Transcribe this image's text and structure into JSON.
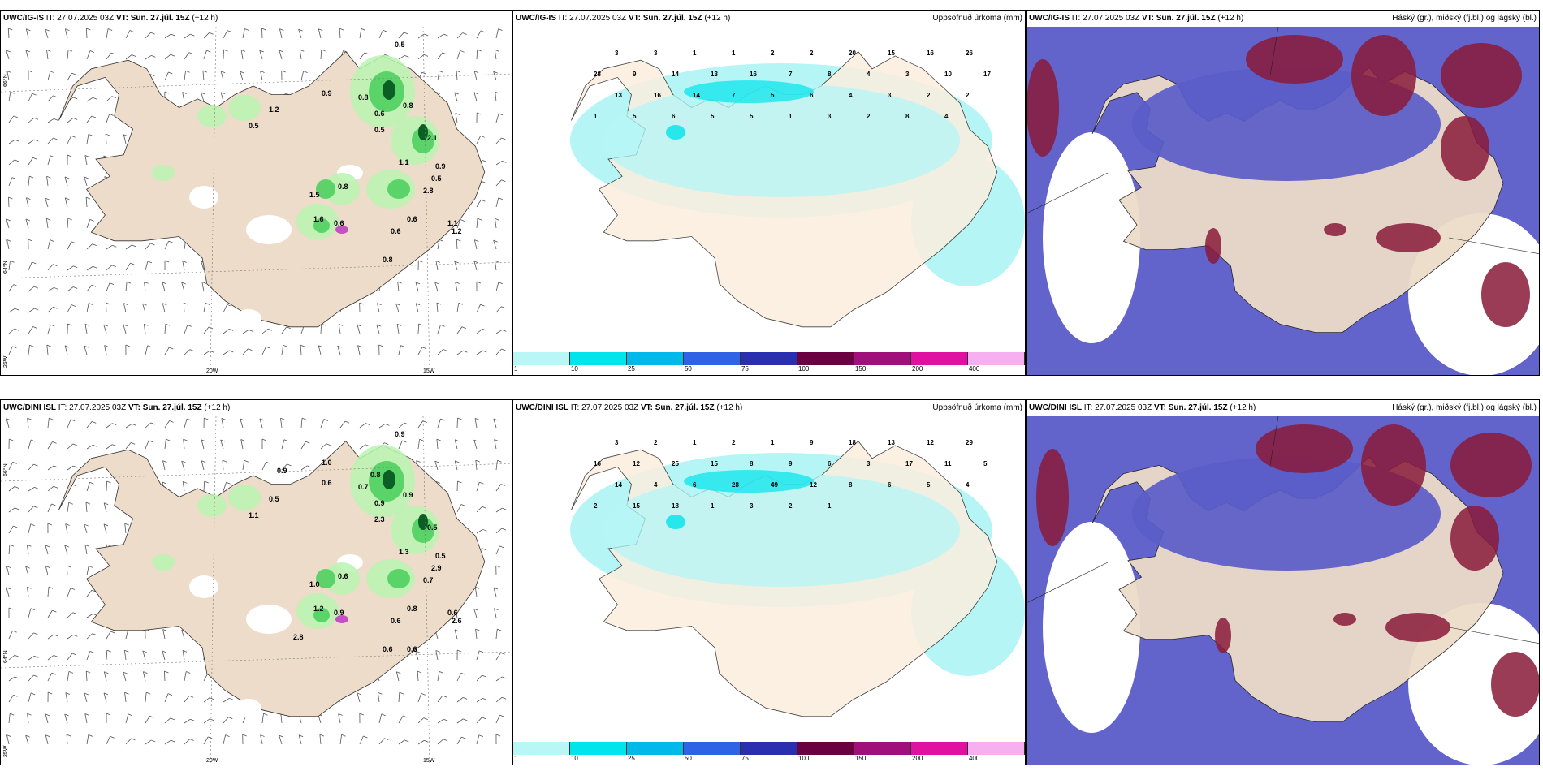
{
  "rows": [
    {
      "model": "UWC/IG-IS",
      "it_label": "IT:",
      "it_value": "27.07.2025 03Z",
      "vt_label": "VT:",
      "vt_value": "Sun. 27.júl. 15Z",
      "lead": "(+12 h)",
      "precip_title": "Uppsöfnuð úrkoma (mm)",
      "cloud_title": "Háský (gr.), miðský (fj.bl.) og lágský (bl.)",
      "wind_values": [
        "0.5",
        "1.2",
        "0.9",
        "0.8",
        "0.5",
        "0.6",
        "0.5",
        "0.8",
        "1.1",
        "0.9",
        "0.5",
        "0.8",
        "1.5",
        "0.6",
        "0.6",
        "0.8",
        "1.1",
        "1.2",
        "1.6",
        "0.6",
        "2.1",
        "2.8"
      ],
      "precip_values": [
        "3",
        "3",
        "1",
        "1",
        "2",
        "2",
        "20",
        "15",
        "16",
        "26",
        "28",
        "9",
        "14",
        "13",
        "16",
        "7",
        "8",
        "4",
        "3",
        "10",
        "17",
        "13",
        "16",
        "14",
        "7",
        "5",
        "6",
        "4",
        "3",
        "2",
        "2",
        "1",
        "5",
        "6",
        "5",
        "5",
        "1",
        "3",
        "2",
        "8",
        "4"
      ]
    },
    {
      "model": "UWC/DINI ISL",
      "it_label": "IT:",
      "it_value": "27.07.2025 03Z",
      "vt_label": "VT:",
      "vt_value": "Sun. 27.júl. 15Z",
      "lead": "(+12 h)",
      "precip_title": "Uppsöfnuð úrkoma (mm)",
      "cloud_title": "Háský (gr.), miðský (fj.bl.) og lágský (bl.)",
      "wind_values": [
        "0.9",
        "0.5",
        "0.6",
        "0.7",
        "1.1",
        "0.9",
        "2.3",
        "0.9",
        "1.3",
        "0.5",
        "2.9",
        "0.6",
        "1.0",
        "0.8",
        "0.6",
        "0.6",
        "0.6",
        "2.6",
        "1.2",
        "0.9",
        "0.5",
        "0.7",
        "0.9",
        "0.8",
        "1.0",
        "2.8",
        "0.6"
      ],
      "precip_values": [
        "3",
        "2",
        "1",
        "2",
        "1",
        "9",
        "18",
        "13",
        "12",
        "29",
        "16",
        "12",
        "25",
        "15",
        "8",
        "9",
        "6",
        "3",
        "17",
        "11",
        "5",
        "14",
        "4",
        "6",
        "28",
        "49",
        "12",
        "8",
        "6",
        "5",
        "4",
        "2",
        "15",
        "18",
        "1",
        "3",
        "2",
        "1"
      ]
    }
  ],
  "axis_labels": {
    "lat66": "66°N",
    "lat64": "64°N",
    "lon20": "20W",
    "lon15": "15W",
    "lon25": "25W"
  },
  "colorbar": {
    "ticks": [
      "1",
      "10",
      "25",
      "50",
      "75",
      "100",
      "150",
      "200",
      "400"
    ],
    "colors": [
      "#b9f7f7",
      "#00e4ec",
      "#00b9ea",
      "#2f62e4",
      "#2a2fb0",
      "#6b0040",
      "#a0107a",
      "#e010a0",
      "#f6b0f0"
    ]
  },
  "colors": {
    "land": "#eddcc9",
    "precip_land": "#fbeede",
    "light_cyan": "#b6f5f5",
    "sea_white": "#ffffff",
    "green_light": "#b8f5b0",
    "green_mid": "#4fcf5f",
    "green_dark": "#0b5e24",
    "cloud_blue": "#5a5cc8",
    "cloud_red": "#8a1a3a"
  }
}
